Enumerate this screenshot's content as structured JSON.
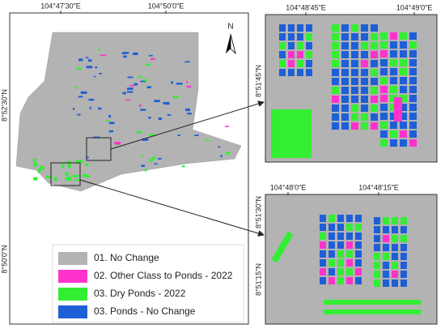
{
  "main_map": {
    "x_labels": [
      "104°47'30\"E",
      "104°50'0\"E"
    ],
    "y_labels": [
      "8°52'30\"N",
      "8°50'0\"N"
    ],
    "north": "N"
  },
  "legend": [
    {
      "label": "01. No Change",
      "color": "#b3b3b3"
    },
    {
      "label": "02. Other Class to Ponds - 2022",
      "color": "#ff33cc"
    },
    {
      "label": "03. Dry Ponds - 2022",
      "color": "#33ee33"
    },
    {
      "label": "03. Ponds - No Change",
      "color": "#1f5fd6"
    }
  ],
  "inset_top": {
    "x_labels": [
      "104°48'45\"E",
      "104°49'0\"E"
    ],
    "y_labels": [
      "8°51'45\"N"
    ]
  },
  "inset_bottom": {
    "x_labels": [
      "104°48'0\"E",
      "104°48'15\"E"
    ],
    "y_labels": [
      "8°51'30\"N",
      "8°51'15\"N"
    ]
  }
}
